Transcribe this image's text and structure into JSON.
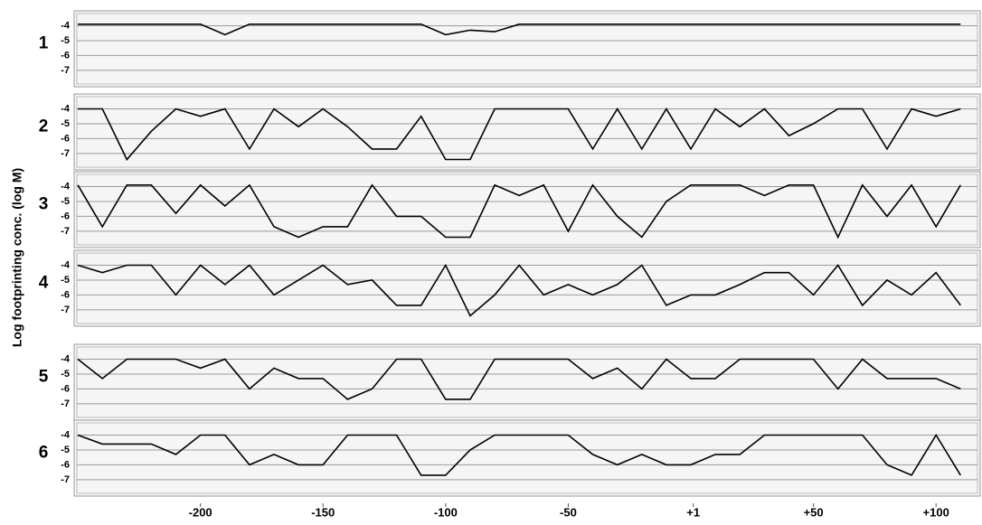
{
  "chart_data": {
    "type": "line",
    "ylabel": "Log footprinting conc. (log M)",
    "x": [
      -250,
      -240,
      -230,
      -220,
      -210,
      -200,
      -190,
      -180,
      -170,
      -160,
      -150,
      -140,
      -130,
      -120,
      -110,
      -100,
      -90,
      -80,
      -70,
      -60,
      -50,
      -40,
      -30,
      -20,
      -10,
      0,
      10,
      20,
      30,
      40,
      50,
      60,
      70,
      80,
      90,
      100,
      110
    ],
    "xlim": [
      -251.5,
      118
    ],
    "xticks": [
      -200,
      -150,
      -100,
      -50,
      {
        "value": 1,
        "label": "+1"
      },
      {
        "value": 50,
        "label": "+50"
      },
      {
        "value": 100,
        "label": "+100"
      }
    ],
    "ylim": [
      -8.1,
      -3.0
    ],
    "yticks": [
      -4,
      -5,
      -6,
      -7
    ],
    "grid": true,
    "series": [
      {
        "name": "1",
        "color": "#000000",
        "values": [
          -3.9,
          -3.9,
          -3.9,
          -3.9,
          -3.9,
          -3.9,
          -4.6,
          -3.9,
          -3.9,
          -3.9,
          -3.9,
          -3.9,
          -3.9,
          -3.9,
          -3.9,
          -4.6,
          -4.3,
          -4.4,
          -3.9,
          -3.9,
          -3.9,
          -3.9,
          -3.9,
          -3.9,
          -3.9,
          -3.9,
          -3.9,
          -3.9,
          -3.9,
          -3.9,
          -3.9,
          -3.9,
          -3.9,
          -3.9,
          -3.9,
          -3.9,
          -3.9
        ]
      },
      {
        "name": "2",
        "color": "#000000",
        "values": [
          -4,
          -4,
          -7.4,
          -5.5,
          -4,
          -4.5,
          -4,
          -6.7,
          -4,
          -5.2,
          -4,
          -5.2,
          -6.7,
          -6.7,
          -4.5,
          -7.4,
          -7.4,
          -4,
          -4,
          -4,
          -4,
          -6.7,
          -4,
          -6.7,
          -4,
          -6.7,
          -4,
          -5.2,
          -4,
          -5.8,
          -5,
          -4,
          -4,
          -6.7,
          -4,
          -4.5,
          -4
        ]
      },
      {
        "name": "3",
        "color": "#000000",
        "values": [
          -3.9,
          -6.7,
          -3.9,
          -3.9,
          -5.8,
          -3.9,
          -5.3,
          -3.9,
          -6.7,
          -7.4,
          -6.7,
          -6.7,
          -3.9,
          -6,
          -6,
          -7.4,
          -7.4,
          -3.9,
          -4.6,
          -3.9,
          -7,
          -3.9,
          -6,
          -7.4,
          -5,
          -3.9,
          -3.9,
          -3.9,
          -4.6,
          -3.9,
          -3.9,
          -7.4,
          -3.9,
          -6,
          -3.9,
          -6.7,
          -3.9
        ]
      },
      {
        "name": "4",
        "color": "#000000",
        "values": [
          -4,
          -4.5,
          -4,
          -4,
          -6,
          -4,
          -5.3,
          -4,
          -6,
          -5,
          -4,
          -5.3,
          -5,
          -6.7,
          -6.7,
          -4,
          -7.4,
          -6,
          -4,
          -6,
          -5.3,
          -6,
          -5.3,
          -4,
          -6.7,
          -6,
          -6,
          -5.3,
          -4.5,
          -4.5,
          -6,
          -4,
          -6.7,
          -5,
          -6,
          -4.5,
          -6.7
        ]
      },
      {
        "name": "5",
        "color": "#000000",
        "values": [
          -4,
          -5.3,
          -4,
          -4,
          -4,
          -4.6,
          -4,
          -6,
          -4.6,
          -5.3,
          -5.3,
          -6.7,
          -6,
          -4,
          -4,
          -6.7,
          -6.7,
          -4,
          -4,
          -4,
          -4,
          -5.3,
          -4.6,
          -6,
          -4,
          -5.3,
          -5.3,
          -4,
          -4,
          -4,
          -4,
          -6,
          -4,
          -5.3,
          -5.3,
          -5.3,
          -6
        ]
      },
      {
        "name": "6",
        "color": "#000000",
        "values": [
          -4,
          -4.6,
          -4.6,
          -4.6,
          -5.3,
          -4,
          -4,
          -6,
          -5.3,
          -6,
          -6,
          -4,
          -4,
          -4,
          -6.7,
          -6.7,
          -5,
          -4,
          -4,
          -4,
          -4,
          -5.3,
          -6,
          -5.3,
          -6,
          -6,
          -5.3,
          -5.3,
          -4,
          -4,
          -4,
          -4,
          -4,
          -6,
          -6.7,
          -4,
          -6.7
        ]
      }
    ]
  }
}
